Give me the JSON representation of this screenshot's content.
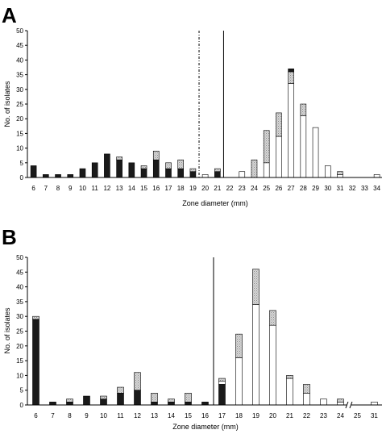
{
  "chart_data": [
    {
      "panel_label": "A",
      "type": "bar",
      "stacked": true,
      "xlabel": "Zone diameter (mm)",
      "ylabel": "No. of isolates",
      "ylim": [
        0,
        50
      ],
      "yticks": [
        0,
        5,
        10,
        15,
        20,
        25,
        30,
        35,
        40,
        45,
        50
      ],
      "categories": [
        "6",
        "7",
        "8",
        "9",
        "10",
        "11",
        "12",
        "13",
        "14",
        "15",
        "16",
        "17",
        "18",
        "19",
        "20",
        "21",
        "22",
        "23",
        "24",
        "25",
        "26",
        "27",
        "28",
        "29",
        "30",
        "31",
        "32",
        "33",
        "34"
      ],
      "series": [
        {
          "fill": "#1a1a1a",
          "values": [
            4,
            1,
            1,
            1,
            3,
            5,
            8,
            6,
            5,
            3,
            6,
            3,
            3,
            2,
            0,
            2,
            0,
            0,
            0,
            0,
            0,
            0,
            0,
            0,
            0,
            0,
            0,
            0,
            0
          ]
        },
        {
          "fill": "#ffffff",
          "values": [
            0,
            0,
            0,
            0,
            0,
            0,
            0,
            0,
            0,
            0,
            0,
            0,
            0,
            0,
            1,
            0,
            0,
            2,
            0,
            5,
            14,
            32,
            21,
            17,
            4,
            1,
            0,
            0,
            1
          ]
        },
        {
          "fill": "#c8c8c8",
          "values": [
            0,
            0,
            0,
            0,
            0,
            0,
            0,
            1,
            0,
            1,
            3,
            2,
            3,
            1,
            0,
            1,
            0,
            0,
            6,
            11,
            8,
            4,
            4,
            0,
            0,
            1,
            0,
            0,
            0
          ]
        },
        {
          "fill": "#1a1a1a",
          "values": [
            0,
            0,
            0,
            0,
            0,
            0,
            0,
            0,
            0,
            0,
            0,
            0,
            0,
            0,
            0,
            0,
            0,
            0,
            0,
            0,
            0,
            1,
            0,
            0,
            0,
            0,
            0,
            0,
            0
          ]
        }
      ],
      "reference_lines": [
        {
          "at_category": "19",
          "offset": 0.5,
          "style": "dotted"
        },
        {
          "at_category": "21",
          "offset": 0.5,
          "style": "solid"
        }
      ]
    },
    {
      "panel_label": "B",
      "type": "bar",
      "stacked": true,
      "xlabel": "Zone diameter (mm)",
      "ylabel": "No. of isolates",
      "ylim": [
        0,
        50
      ],
      "yticks": [
        0,
        5,
        10,
        15,
        20,
        25,
        30,
        35,
        40,
        45,
        50
      ],
      "categories": [
        "6",
        "7",
        "8",
        "9",
        "10",
        "11",
        "12",
        "13",
        "14",
        "15",
        "16",
        "17",
        "18",
        "19",
        "20",
        "21",
        "22",
        "23",
        "24",
        "25",
        "31"
      ],
      "axis_break_after": "24",
      "series": [
        {
          "fill": "#1a1a1a",
          "values": [
            29,
            1,
            1,
            3,
            2,
            4,
            5,
            1,
            1,
            1,
            1,
            7,
            0,
            0,
            0,
            0,
            0,
            0,
            0,
            0,
            0
          ]
        },
        {
          "fill": "#ffffff",
          "values": [
            0,
            0,
            0,
            0,
            0,
            0,
            0,
            0,
            0,
            0,
            0,
            1,
            16,
            34,
            27,
            9,
            4,
            2,
            1,
            0,
            1
          ]
        },
        {
          "fill": "#c8c8c8",
          "values": [
            1,
            0,
            1,
            0,
            1,
            2,
            6,
            3,
            1,
            3,
            0,
            1,
            8,
            12,
            5,
            1,
            3,
            0,
            1,
            0,
            0
          ]
        }
      ],
      "reference_lines": [
        {
          "at_category": "16",
          "offset": 0.5,
          "style": "solid"
        }
      ]
    }
  ]
}
